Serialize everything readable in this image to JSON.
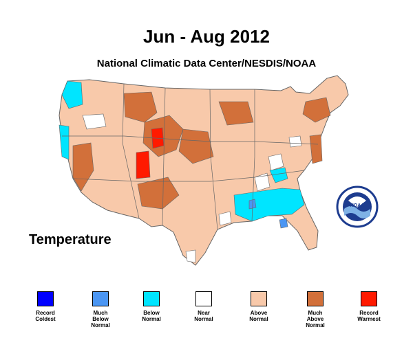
{
  "title": "Jun - Aug 2012",
  "subtitle": "National Climatic Data Center/NESDIS/NOAA",
  "variable_label": "Temperature",
  "logo": {
    "text": "NOAA",
    "icon": "noaa-logo-icon"
  },
  "colors": {
    "record_coldest": "#0000ff",
    "much_below_normal": "#4b96f3",
    "below_normal": "#00e5ff",
    "near_normal": "#ffffff",
    "above_normal": "#f8c9aa",
    "much_above_normal": "#d2703a",
    "record_warmest": "#ff1a00",
    "boundary": "#666666"
  },
  "legend": [
    {
      "label_lines": [
        "Record",
        "Coldest"
      ],
      "color": "#0000ff"
    },
    {
      "label_lines": [
        "Much",
        "Below",
        "Normal"
      ],
      "color": "#4b96f3"
    },
    {
      "label_lines": [
        "Below",
        "Normal"
      ],
      "color": "#00e5ff"
    },
    {
      "label_lines": [
        "Near",
        "Normal"
      ],
      "color": "#ffffff"
    },
    {
      "label_lines": [
        "Above",
        "Normal"
      ],
      "color": "#f8c9aa"
    },
    {
      "label_lines": [
        "Much",
        "Above",
        "Normal"
      ],
      "color": "#d2703a"
    },
    {
      "label_lines": [
        "Record",
        "Warmest"
      ],
      "color": "#ff1a00"
    }
  ]
}
